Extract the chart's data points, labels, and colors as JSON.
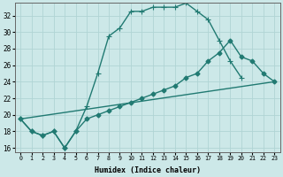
{
  "xlabel": "Humidex (Indice chaleur)",
  "xlim": [
    -0.5,
    23.5
  ],
  "ylim": [
    15.5,
    33.5
  ],
  "xticks": [
    0,
    1,
    2,
    3,
    4,
    5,
    6,
    7,
    8,
    9,
    10,
    11,
    12,
    13,
    14,
    15,
    16,
    17,
    18,
    19,
    20,
    21,
    22,
    23
  ],
  "yticks": [
    16,
    18,
    20,
    22,
    24,
    26,
    28,
    30,
    32
  ],
  "bg_color": "#cce8e8",
  "grid_color": "#b0d4d4",
  "line_color": "#217a72",
  "line1_x": [
    0,
    1,
    2,
    3,
    4,
    5,
    6,
    7,
    8,
    9,
    10,
    11,
    12,
    13,
    14,
    15,
    16,
    17,
    18,
    19,
    20
  ],
  "line1_y": [
    19.5,
    18.0,
    17.5,
    18.0,
    16.0,
    18.0,
    21.0,
    25.0,
    29.5,
    30.5,
    32.5,
    32.5,
    33.0,
    33.0,
    33.0,
    33.5,
    32.5,
    31.5,
    29.0,
    26.5,
    24.5
  ],
  "line2_x": [
    0,
    1,
    2,
    3,
    4,
    5,
    6,
    7,
    8,
    9,
    10,
    11,
    12,
    13,
    14,
    15,
    16,
    17,
    18,
    19,
    20,
    21,
    22,
    23
  ],
  "line2_y": [
    19.5,
    18.0,
    17.5,
    18.0,
    16.0,
    18.0,
    19.5,
    20.0,
    20.5,
    21.0,
    21.5,
    22.0,
    22.5,
    23.0,
    23.5,
    24.5,
    25.0,
    26.5,
    27.5,
    29.0,
    27.0,
    26.5,
    25.0,
    24.0
  ],
  "line3_x": [
    0,
    23
  ],
  "line3_y": [
    19.5,
    24.0
  ],
  "dot_size": 2.5,
  "line_width": 1.0
}
